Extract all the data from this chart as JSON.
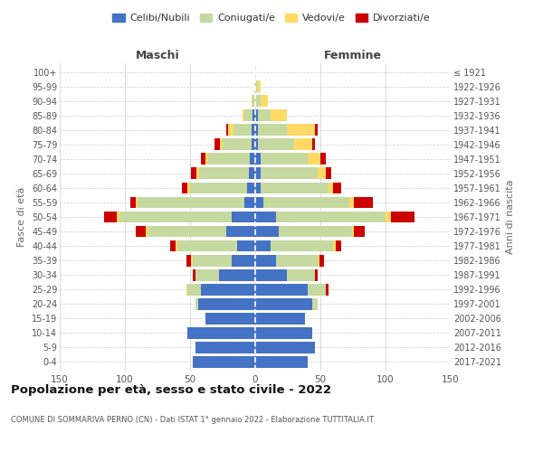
{
  "age_groups": [
    "100+",
    "95-99",
    "90-94",
    "85-89",
    "80-84",
    "75-79",
    "70-74",
    "65-69",
    "60-64",
    "55-59",
    "50-54",
    "45-49",
    "40-44",
    "35-39",
    "30-34",
    "25-29",
    "20-24",
    "15-19",
    "10-14",
    "5-9",
    "0-4"
  ],
  "birth_years": [
    "≤ 1921",
    "1922-1926",
    "1927-1931",
    "1932-1936",
    "1937-1941",
    "1942-1946",
    "1947-1951",
    "1952-1956",
    "1957-1961",
    "1962-1966",
    "1967-1971",
    "1972-1976",
    "1977-1981",
    "1982-1986",
    "1987-1991",
    "1992-1996",
    "1997-2001",
    "2002-2006",
    "2007-2011",
    "2012-2016",
    "2017-2021"
  ],
  "male": {
    "celibi": [
      0,
      0,
      0,
      2,
      3,
      3,
      4,
      5,
      6,
      8,
      18,
      22,
      14,
      18,
      28,
      42,
      44,
      38,
      52,
      46,
      48
    ],
    "coniugati": [
      0,
      1,
      2,
      6,
      14,
      22,
      32,
      38,
      44,
      82,
      86,
      60,
      46,
      30,
      18,
      10,
      2,
      0,
      0,
      0,
      0
    ],
    "vedovi": [
      0,
      0,
      1,
      2,
      4,
      2,
      2,
      2,
      2,
      2,
      2,
      2,
      1,
      1,
      0,
      1,
      0,
      0,
      0,
      0,
      0
    ],
    "divorziati": [
      0,
      0,
      0,
      0,
      1,
      4,
      4,
      4,
      4,
      4,
      10,
      8,
      4,
      4,
      2,
      0,
      0,
      0,
      0,
      0,
      0
    ]
  },
  "female": {
    "nubili": [
      0,
      0,
      0,
      2,
      2,
      2,
      4,
      4,
      4,
      6,
      16,
      18,
      12,
      16,
      24,
      40,
      44,
      38,
      44,
      46,
      40
    ],
    "coniugate": [
      0,
      2,
      4,
      10,
      22,
      28,
      36,
      44,
      52,
      66,
      84,
      56,
      48,
      32,
      22,
      14,
      4,
      0,
      0,
      0,
      0
    ],
    "vedove": [
      0,
      2,
      6,
      12,
      22,
      14,
      10,
      6,
      4,
      4,
      4,
      2,
      2,
      1,
      0,
      0,
      0,
      0,
      0,
      0,
      0
    ],
    "divorziate": [
      0,
      0,
      0,
      0,
      2,
      2,
      4,
      4,
      6,
      14,
      18,
      8,
      4,
      4,
      2,
      2,
      0,
      0,
      0,
      0,
      0
    ]
  },
  "colors": {
    "celibi_nubili": "#4472C4",
    "coniugati_e": "#C5D9A0",
    "vedovi_e": "#FFD966",
    "divorziati_e": "#CC0000"
  },
  "title": "Popolazione per età, sesso e stato civile - 2022",
  "subtitle": "COMUNE DI SOMMARIVA PERNO (CN) - Dati ISTAT 1° gennaio 2022 - Elaborazione TUTTITALIA.IT",
  "xlabel_left": "Maschi",
  "xlabel_right": "Femmine",
  "ylabel_left": "Fasce di età",
  "ylabel_right": "Anni di nascita",
  "xlim": 150,
  "bg_color": "#ffffff",
  "grid_color": "#cccccc",
  "bar_height": 0.8
}
